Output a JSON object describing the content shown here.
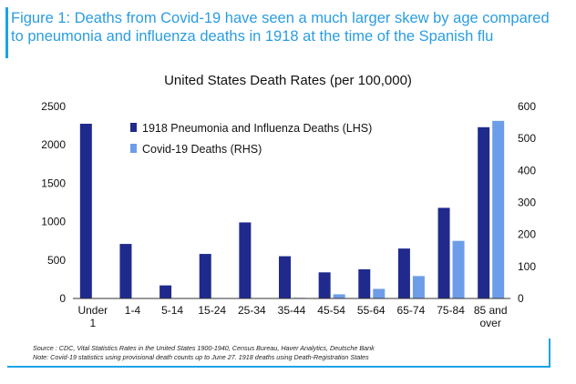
{
  "header": {
    "title_line1": "Figure 1: Deaths from Covid-19 have seen a much larger skew by age compared",
    "title_line2": "to pneumonia and influenza deaths in 1918 at the time of the Spanish flu"
  },
  "colors": {
    "accent": "#1aa3e8",
    "series_1918": "#1f2a8c",
    "series_covid": "#6d9de8"
  },
  "chart_data": {
    "type": "bar",
    "title": "United States Death Rates (per 100,000)",
    "categories": [
      "Under 1",
      "1-4",
      "5-14",
      "15-24",
      "25-34",
      "35-44",
      "45-54",
      "55-64",
      "65-74",
      "75-84",
      "85 and over"
    ],
    "series": [
      {
        "name": "1918 Pneumonia and Influenza Deaths (LHS)",
        "axis": "left",
        "values": [
          2275,
          710,
          170,
          580,
          990,
          550,
          340,
          380,
          650,
          1180,
          2230
        ]
      },
      {
        "name": "Covid-19 Deaths (RHS)",
        "axis": "right",
        "values": [
          0,
          0,
          0,
          0,
          0,
          2,
          13,
          30,
          70,
          180,
          555
        ]
      }
    ],
    "y_left": {
      "min": 0,
      "max": 2500,
      "ticks": [
        "0",
        "500",
        "1000",
        "1500",
        "2000",
        "2500"
      ]
    },
    "y_right": {
      "min": 0,
      "max": 600,
      "ticks": [
        "0",
        "100",
        "200",
        "300",
        "400",
        "500",
        "600"
      ]
    },
    "grid": false,
    "legend_position": "top-left"
  },
  "source": {
    "line1": "Source : CDC, Vital Statistics Rates in the United States 1900-1940, Census Bureau, Haver Analytics, Deutsche Bank",
    "line2": "Note: Covid-19 statistics using provisional death counts up to June 27. 1918 deaths using Death-Registration States"
  }
}
